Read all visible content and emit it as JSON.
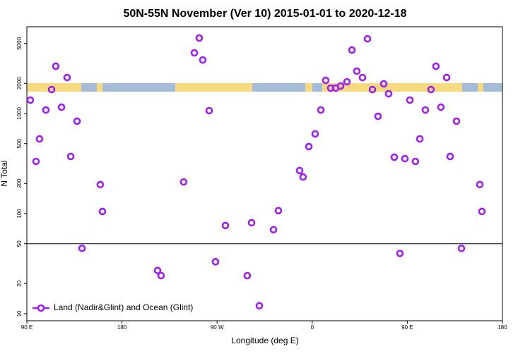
{
  "chart_data": {
    "type": "scatter",
    "title": "50N-55N November (Ver 10)   2015-01-01 to 2020-12-18",
    "xlabel": "Longitude (deg E)",
    "ylabel": "N Total",
    "log_y": true,
    "legend": "bottom-left",
    "hlines": [
      50
    ],
    "xlim": [
      90,
      540
    ],
    "xticks": [
      {
        "value": 90,
        "label": "90 E"
      },
      180,
      {
        "value": 270,
        "label": "90 W"
      },
      {
        "value": 360,
        "label": "0"
      },
      {
        "value": 450,
        "label": "90 E"
      },
      {
        "value": 540,
        "label": "180"
      }
    ],
    "ylim": [
      8.5,
      7350
    ],
    "yticks": [
      10,
      20,
      50,
      100,
      200,
      500,
      1000,
      2000,
      5000
    ],
    "series": [
      {
        "name": "Land (Nadir&Glint) and Ocean (Glint)",
        "color": "#a020f0",
        "x": [
          93.3,
          98.7,
          102,
          108,
          113.4,
          117.4,
          122.8,
          128.1,
          131.5,
          137.5,
          142.2,
          159.5,
          161.5,
          213.7,
          217,
          238.4,
          248.5,
          253.1,
          256.5,
          262.5,
          268.5,
          277.9,
          298.6,
          302.6,
          310,
          323.4,
          328,
          348.1,
          351.4,
          356.8,
          362.8,
          368.2,
          372.8,
          377.5,
          382.2,
          386.9,
          392.9,
          397.6,
          402.2,
          407.6,
          412.3,
          417,
          422.3,
          427.7,
          432.3,
          437.7,
          443,
          447.7,
          452.4,
          457.7,
          461.8,
          467.1,
          472.4,
          477.1,
          481.8,
          487.2,
          490.5,
          496.5,
          501.2,
          518.6,
          520.6
        ],
        "values": [
          1360,
          332,
          557,
          1084,
          1734,
          2965,
          1156,
          2286,
          372,
          838,
          45,
          195,
          105,
          27,
          24,
          207,
          4036,
          5680,
          3427,
          1067,
          33,
          76,
          24,
          81,
          12,
          69,
          107,
          269,
          232,
          467,
          625,
          1084,
          2143,
          1794,
          1794,
          1884,
          2075,
          4305,
          2650,
          2286,
          5573,
          1734,
          937,
          1977,
          1574,
          366,
          40,
          354,
          1361,
          332,
          557,
          1084,
          1734,
          2965,
          1156,
          2286,
          372,
          838,
          45,
          195,
          105
        ]
      }
    ]
  }
}
